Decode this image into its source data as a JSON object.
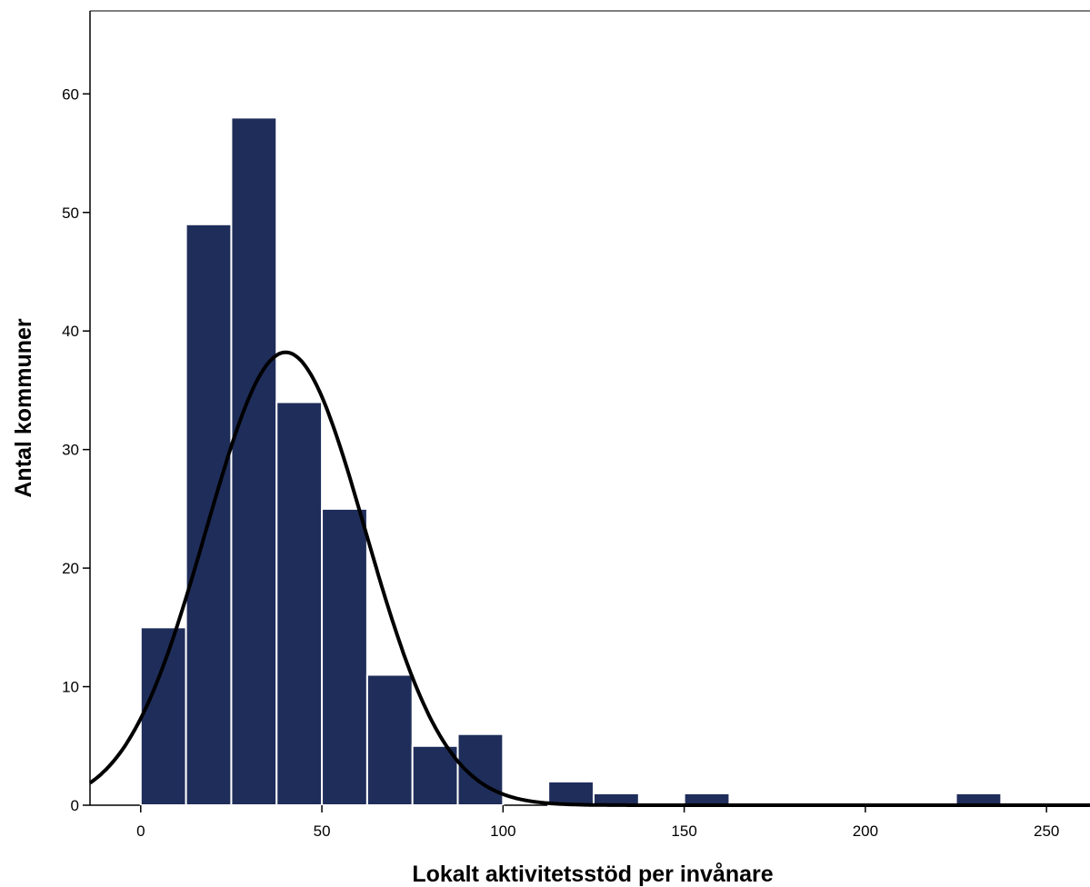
{
  "chart_data": {
    "type": "bar",
    "subtype": "histogram",
    "title": "",
    "xlabel": "Lokalt aktivitetsstöd per invånare",
    "ylabel": "Antal kommuner",
    "bin_width": 12.5,
    "bin_starts": [
      0,
      12.5,
      25,
      37.5,
      50,
      62.5,
      75,
      87.5,
      100,
      112.5,
      125,
      137.5,
      150,
      162.5,
      175,
      187.5,
      200,
      212.5,
      225
    ],
    "values": [
      15,
      49,
      58,
      34,
      25,
      11,
      5,
      6,
      0,
      2,
      1,
      0,
      1,
      0,
      0,
      0,
      0,
      0,
      1
    ],
    "xlim": [
      -14,
      262
    ],
    "ylim": [
      0,
      67
    ],
    "x_ticks": [
      0,
      50,
      100,
      150,
      200,
      250
    ],
    "x_tick_labels": [
      "0",
      "50",
      "100",
      "150",
      "200",
      "250"
    ],
    "y_ticks": [
      0,
      10,
      20,
      30,
      40,
      50,
      60
    ],
    "y_tick_labels": [
      "0",
      "10",
      "20",
      "30",
      "40",
      "50",
      "60"
    ],
    "normal_curve": {
      "mean": 40,
      "std": 22,
      "peak": 38.2
    },
    "grid": false,
    "legend": "none",
    "colors": {
      "bar_fill": "#1f2d5a",
      "bar_edge": "#ffffff",
      "curve": "#000000",
      "axis": "#000000",
      "frame": "#555555"
    }
  }
}
